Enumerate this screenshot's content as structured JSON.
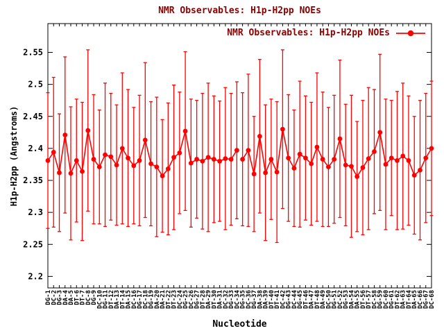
{
  "window": {
    "background": "#ffffff"
  },
  "chart_data": {
    "type": "line",
    "title": "NMR Observables: H1p-H2pp NOEs",
    "xlabel": "Nucleotide",
    "ylabel": "H1p-H2pp (Angstroms)",
    "legend": {
      "label": "NMR Observables: H1p-H2pp NOEs",
      "position": "top-right",
      "marker": "filled-circle-on-line"
    },
    "colors": {
      "series": "#ff0000",
      "title": "#8b0000",
      "legend_text": "#8b0000",
      "axis": "#000000",
      "background": "#ffffff"
    },
    "grid": false,
    "error_bars": true,
    "ylim": [
      2.182,
      2.595
    ],
    "yticks": [
      2.2,
      2.25,
      2.3,
      2.35,
      2.4,
      2.45,
      2.5,
      2.55
    ],
    "line_break_after_index": 33,
    "categories": [
      "DG-1",
      "DC-2",
      "DG-3",
      "DA-4",
      "DA-5",
      "DT-6",
      "DT-7",
      "DC-8",
      "DG-9",
      "DC-10",
      "DG-11",
      "DT-12",
      "DA-13",
      "DT-14",
      "DA-15",
      "DC-16",
      "DG-17",
      "DC-18",
      "DG-19",
      "DA-20",
      "DA-21",
      "DT-22",
      "DT-23",
      "DC-24",
      "DG-25",
      "DC-26",
      "DG-27",
      "DT-28",
      "DA-29",
      "DT-30",
      "DA-31",
      "DC-32",
      "DG-33",
      "DC-34",
      "DG-35",
      "DC-36",
      "DG-37",
      "DA-38",
      "DA-39",
      "DT-40",
      "DT-41",
      "DC-42",
      "DG-43",
      "DC-44",
      "DG-45",
      "DT-46",
      "DA-47",
      "DT-48",
      "DA-49",
      "DC-50",
      "DG-51",
      "DC-52",
      "DG-53",
      "DA-54",
      "DA-55",
      "DT-56",
      "DT-57",
      "DC-58",
      "DG-59",
      "DC-60",
      "DG-61",
      "DT-62",
      "DA-63",
      "DT-64",
      "DA-65",
      "DC-66",
      "DG-67",
      "DC-68"
    ],
    "values": [
      2.381,
      2.394,
      2.362,
      2.421,
      2.361,
      2.381,
      2.364,
      2.428,
      2.383,
      2.371,
      2.39,
      2.387,
      2.374,
      2.4,
      2.385,
      2.373,
      2.381,
      2.413,
      2.376,
      2.371,
      2.357,
      2.368,
      2.386,
      2.393,
      2.427,
      2.377,
      2.383,
      2.38,
      2.386,
      2.383,
      2.38,
      2.384,
      2.383,
      2.397,
      2.383,
      2.397,
      2.36,
      2.419,
      2.362,
      2.383,
      2.363,
      2.43,
      2.385,
      2.369,
      2.391,
      2.385,
      2.376,
      2.402,
      2.383,
      2.371,
      2.383,
      2.415,
      2.374,
      2.372,
      2.356,
      2.37,
      2.384,
      2.395,
      2.425,
      2.375,
      2.385,
      2.381,
      2.388,
      2.381,
      2.358,
      2.366,
      2.385,
      2.4
    ],
    "errors": [
      0.106,
      0.117,
      0.092,
      0.122,
      0.104,
      0.096,
      0.108,
      0.126,
      0.101,
      0.089,
      0.112,
      0.099,
      0.094,
      0.118,
      0.107,
      0.091,
      0.102,
      0.121,
      0.097,
      0.109,
      0.088,
      0.103,
      0.113,
      0.095,
      0.124,
      0.1,
      0.092,
      0.106,
      0.116,
      0.099,
      0.094,
      0.111,
      0.103,
      0.107,
      0.104,
      0.119,
      0.09,
      0.12,
      0.106,
      0.094,
      0.11,
      0.124,
      0.099,
      0.091,
      0.114,
      0.097,
      0.096,
      0.116,
      0.105,
      0.093,
      0.1,
      0.123,
      0.095,
      0.111,
      0.086,
      0.105,
      0.111,
      0.097,
      0.122,
      0.102,
      0.09,
      0.108,
      0.114,
      0.101,
      0.092,
      0.109,
      0.101,
      0.105
    ]
  }
}
